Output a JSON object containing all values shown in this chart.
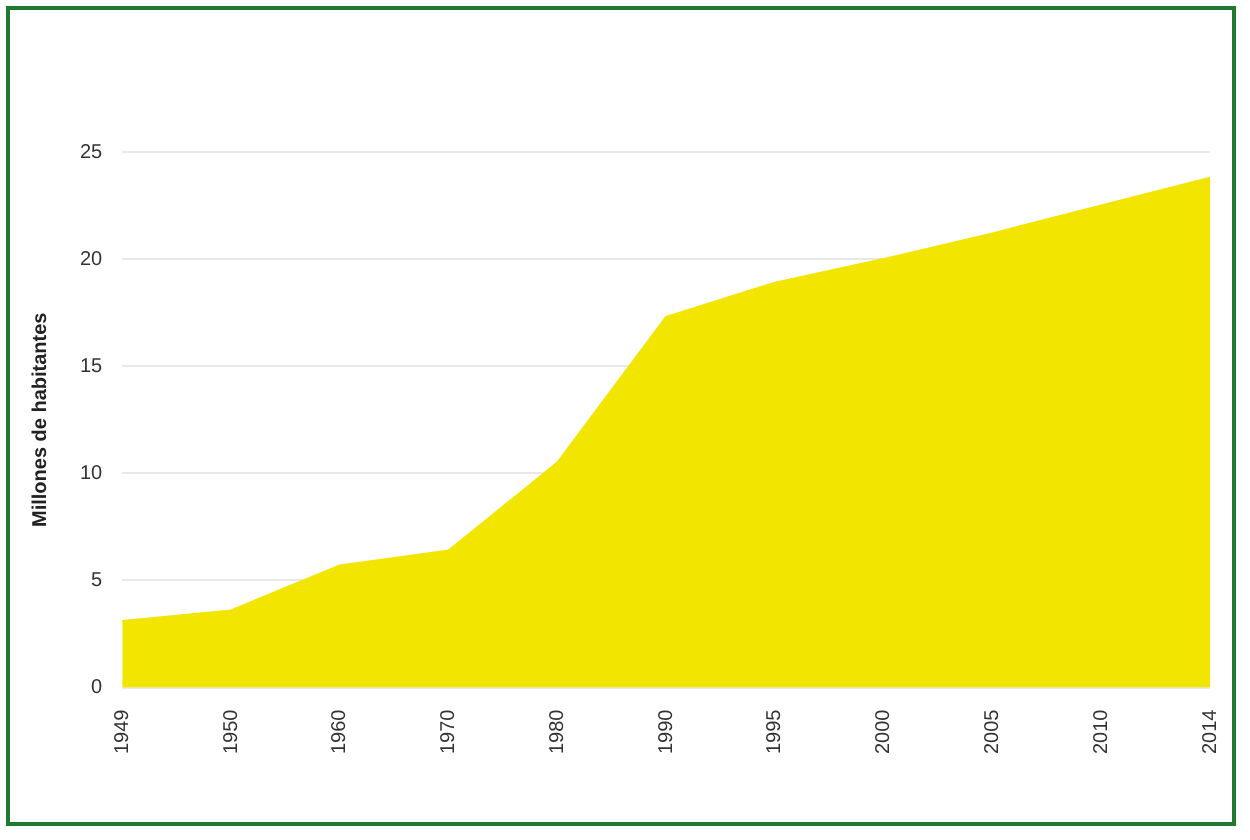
{
  "chart_data": {
    "type": "area",
    "ylabel": "Millones de habitantes",
    "categories": [
      "1949",
      "1950",
      "1960",
      "1970",
      "1980",
      "1990",
      "1995",
      "2000",
      "2005",
      "2010",
      "2014"
    ],
    "series": [
      {
        "color": "#f2e600",
        "values": [
          3.1,
          3.6,
          5.7,
          6.4,
          10.5,
          17.3,
          18.9,
          20.0,
          21.2,
          22.5,
          23.8
        ]
      }
    ],
    "ylim": [
      0,
      25
    ],
    "yticks": [
      0,
      5,
      10,
      15,
      20,
      25
    ],
    "grid": "y",
    "legend": false
  }
}
